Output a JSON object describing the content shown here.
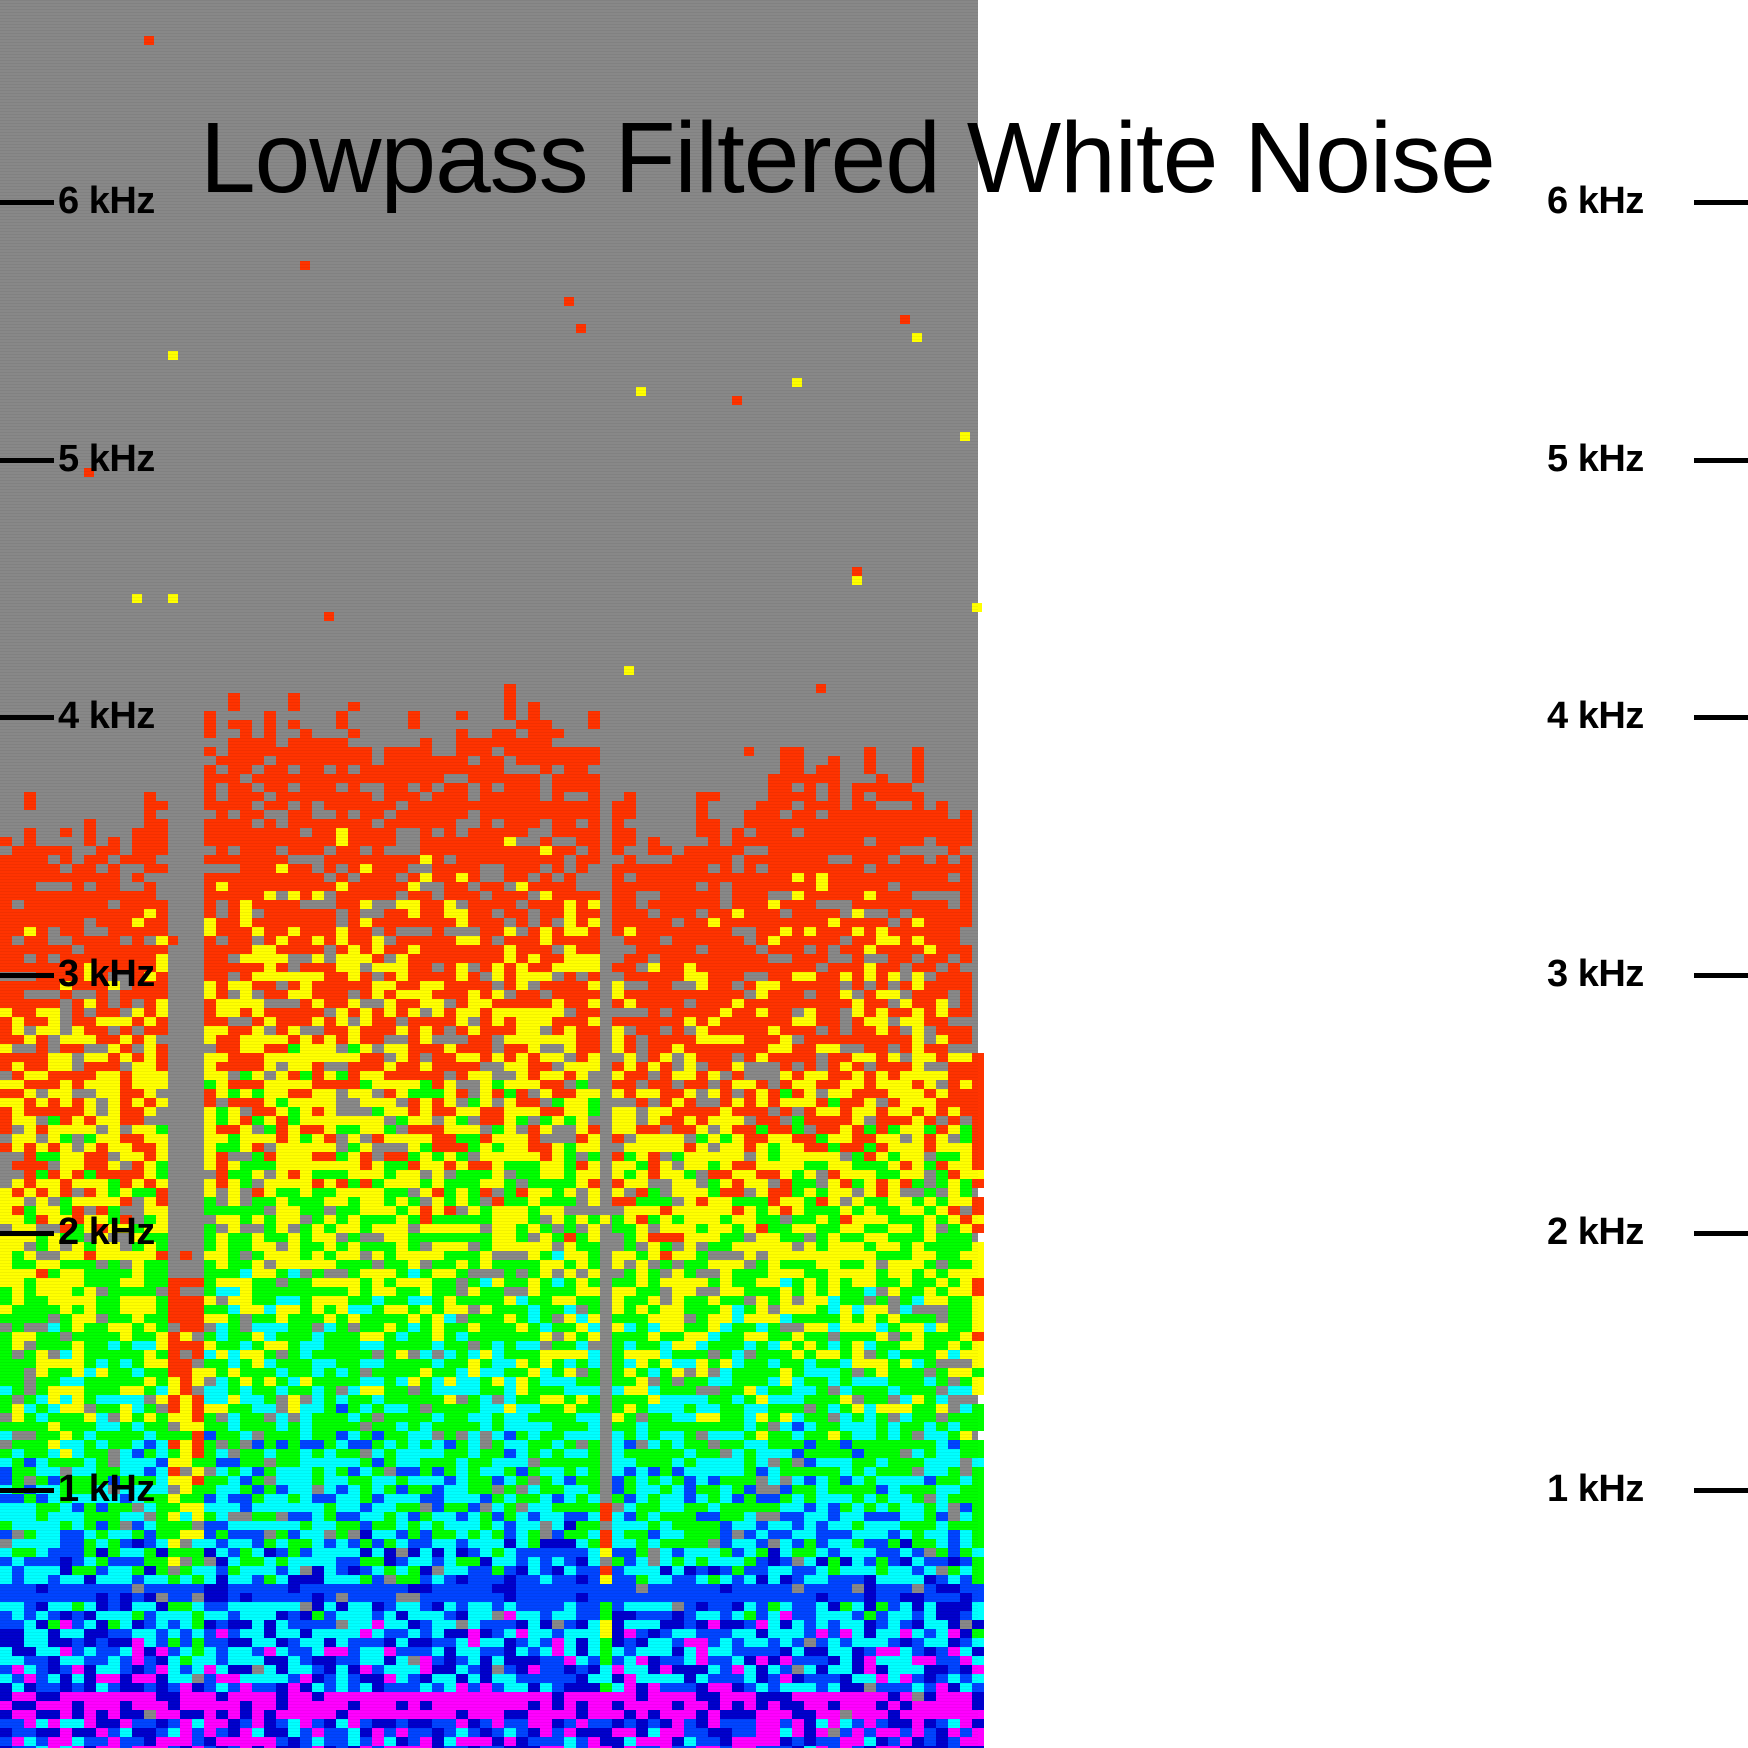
{
  "chart_data": {
    "type": "heatmap",
    "title": "Lowpass Filtered White Noise",
    "y_axis": {
      "ticks": [
        {
          "value": 1000,
          "label": "1 kHz"
        },
        {
          "value": 2000,
          "label": "2 kHz"
        },
        {
          "value": 3000,
          "label": "3 kHz"
        },
        {
          "value": 4000,
          "label": "4 kHz"
        },
        {
          "value": 5000,
          "label": "5 kHz"
        },
        {
          "value": 6000,
          "label": "6 kHz"
        }
      ],
      "sides": [
        "left",
        "right"
      ],
      "unit": "Hz"
    },
    "colormap": [
      "#888888",
      "#ff3300",
      "#ffff00",
      "#00ff00",
      "#00ffff",
      "#0044ff",
      "#0000cc",
      "#ff00ff"
    ],
    "background_color": "#888888",
    "grid": false
  }
}
